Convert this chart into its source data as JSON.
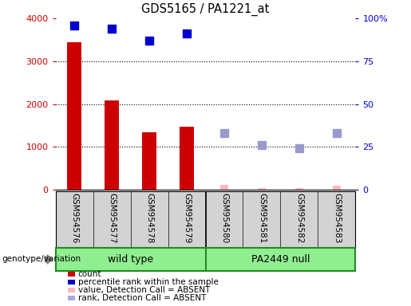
{
  "title": "GDS5165 / PA1221_at",
  "samples": [
    "GSM954576",
    "GSM954577",
    "GSM954578",
    "GSM954579",
    "GSM954580",
    "GSM954581",
    "GSM954582",
    "GSM954583"
  ],
  "groups": [
    {
      "label": "wild type",
      "start": 0,
      "end": 3
    },
    {
      "label": "PA2449 null",
      "start": 4,
      "end": 7
    }
  ],
  "counts": [
    3450,
    2080,
    1340,
    1480,
    null,
    null,
    null,
    null
  ],
  "counts_absent": [
    null,
    null,
    null,
    null,
    120,
    30,
    30,
    100
  ],
  "pct_ranks": [
    96,
    94,
    87,
    91,
    null,
    null,
    null,
    null
  ],
  "pct_ranks_absent": [
    null,
    null,
    null,
    null,
    33,
    26,
    24,
    33
  ],
  "ylim_left": [
    0,
    4000
  ],
  "ylim_right": [
    0,
    100
  ],
  "yticks_left": [
    0,
    1000,
    2000,
    3000,
    4000
  ],
  "yticks_right": [
    0,
    25,
    50,
    75,
    100
  ],
  "yticklabels_right": [
    "0",
    "25",
    "50",
    "75",
    "100%"
  ],
  "bar_color_present": "#CC0000",
  "bar_color_absent": "#FFB6C1",
  "dot_color_present": "#0000CC",
  "dot_color_absent": "#9999CC",
  "group_row_color": "#90EE90",
  "group_row_border": "#228B22",
  "legend_items": [
    {
      "label": "count",
      "color": "#CC0000"
    },
    {
      "label": "percentile rank within the sample",
      "color": "#0000CC"
    },
    {
      "label": "value, Detection Call = ABSENT",
      "color": "#FFB6C1"
    },
    {
      "label": "rank, Detection Call = ABSENT",
      "color": "#AAAADD"
    }
  ]
}
